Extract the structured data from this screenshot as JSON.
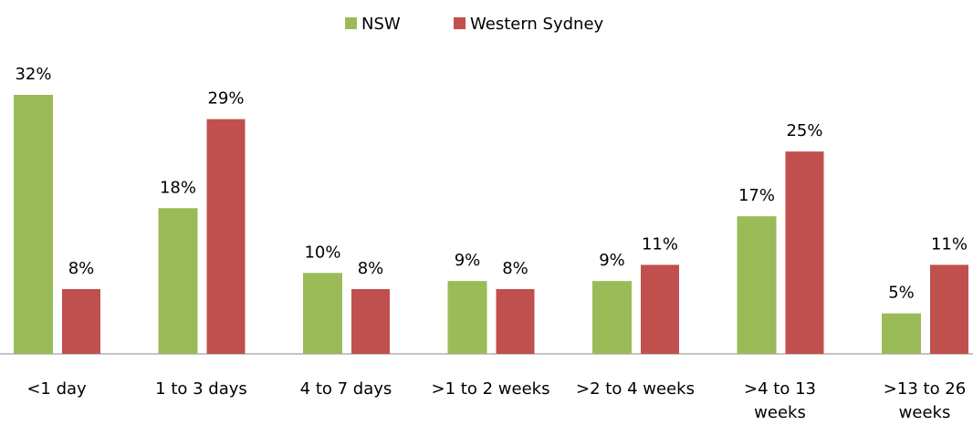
{
  "chart_data": {
    "type": "bar",
    "categories": [
      "<1 day",
      "1 to 3 days",
      "4 to 7 days",
      ">1 to 2 weeks",
      ">2 to 4 weeks",
      ">4 to 13 weeks",
      ">13 to 26 weeks"
    ],
    "series": [
      {
        "name": "NSW",
        "color": "#9bbb59",
        "values": [
          32,
          18,
          10,
          9,
          9,
          17,
          5
        ],
        "value_labels": [
          "32%",
          "18%",
          "10%",
          "9%",
          "9%",
          "17%",
          "5%"
        ]
      },
      {
        "name": "Western Sydney",
        "color": "#c0504d",
        "values": [
          8,
          29,
          8,
          8,
          11,
          25,
          11
        ],
        "value_labels": [
          "8%",
          "29%",
          "8%",
          "8%",
          "11%",
          "25%",
          "11%"
        ]
      }
    ],
    "ylim": [
      0,
      32
    ],
    "legend": "top"
  }
}
